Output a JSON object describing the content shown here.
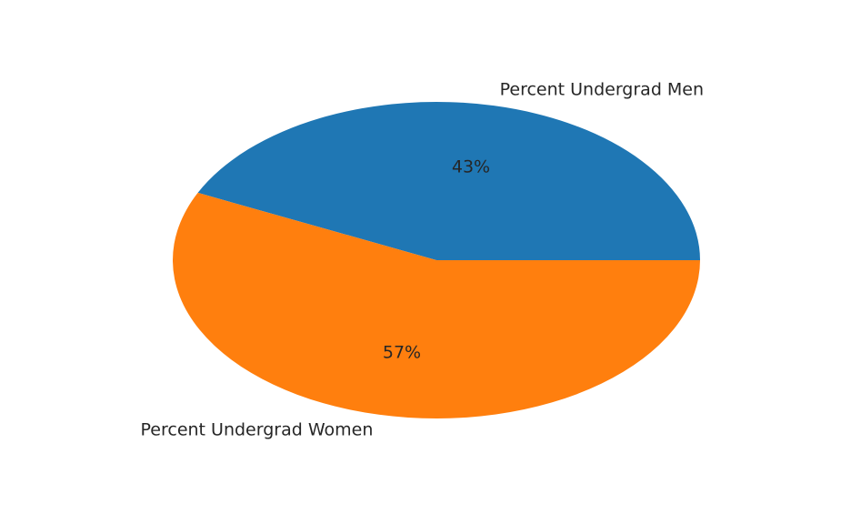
{
  "chart_data": {
    "type": "pie",
    "title": "",
    "categories": [
      "Percent Undergrad Men",
      "Percent Undergrad Women"
    ],
    "values": [
      43,
      57
    ],
    "percent_labels": [
      "43%",
      "57%"
    ],
    "colors": [
      "#1f77b4",
      "#ff7f0e"
    ],
    "start_angle_deg": 0,
    "direction": "counterclockwise",
    "legend": "none"
  }
}
